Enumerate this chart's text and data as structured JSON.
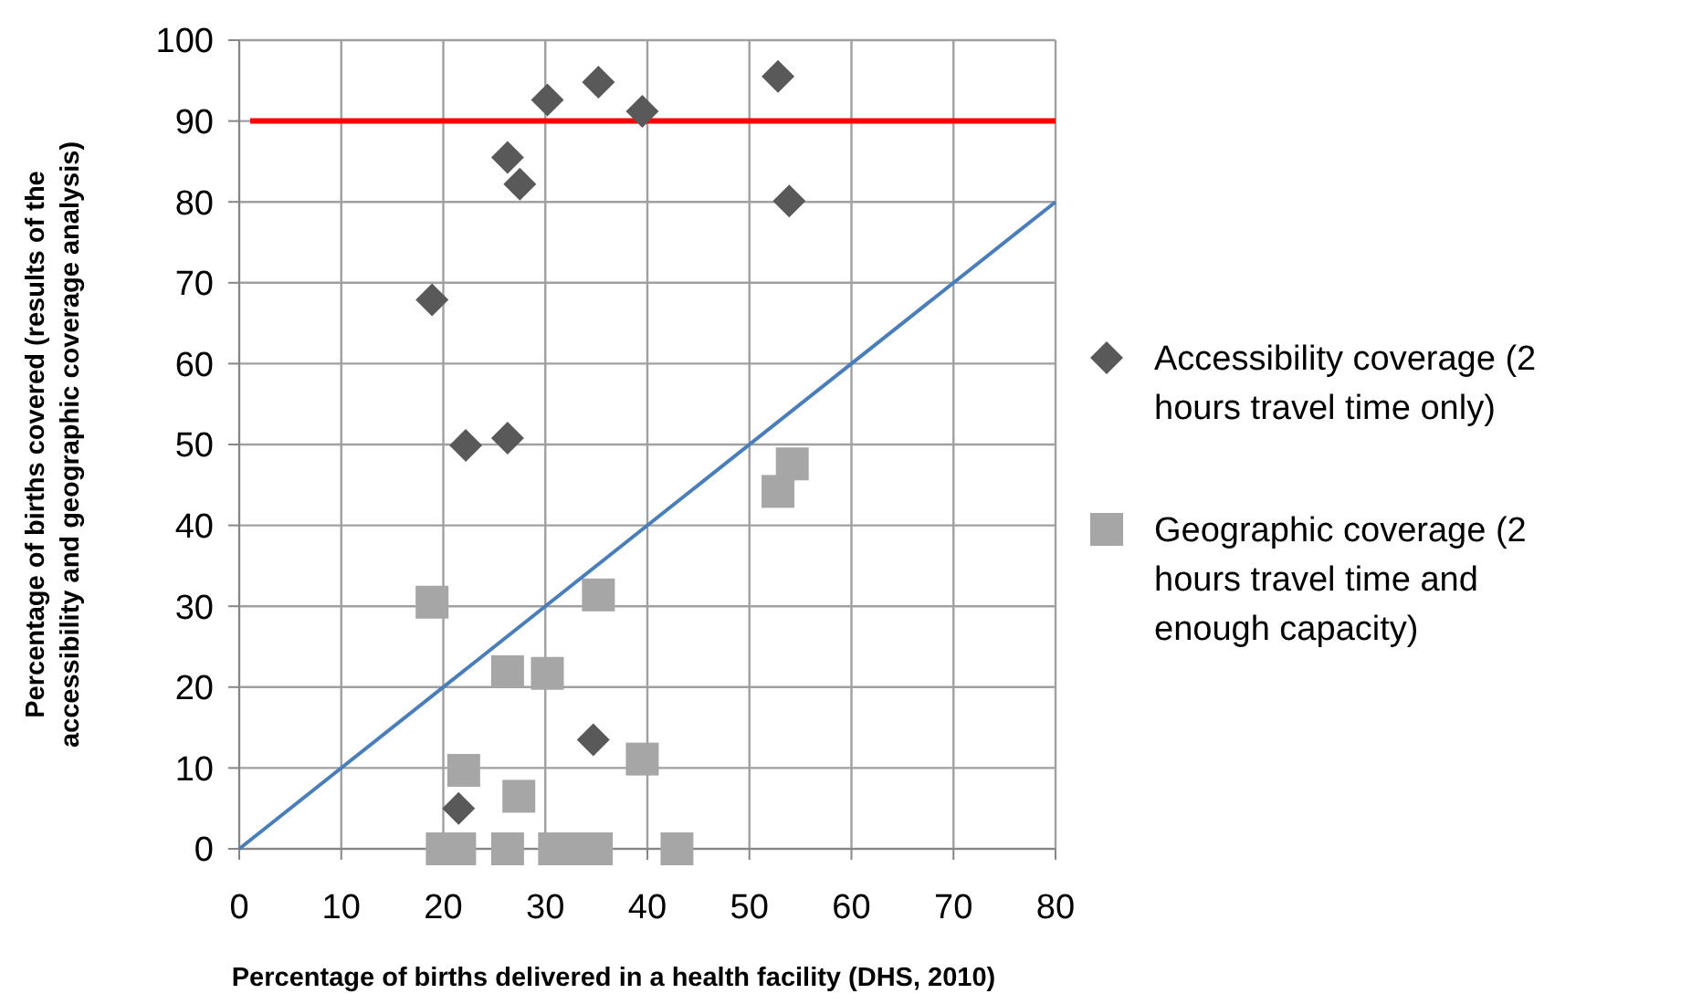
{
  "chart_data": {
    "type": "scatter",
    "xlabel": "Percentage of births delivered in a health facility (DHS, 2010)",
    "ylabel": "Percentage of births covered (results of the accessibility and geographic coverage analysis)",
    "xlim": [
      0,
      80
    ],
    "xticks": [
      0,
      10,
      20,
      30,
      40,
      50,
      60,
      70,
      80
    ],
    "ylim": [
      0,
      100
    ],
    "yticks": [
      0,
      10,
      20,
      30,
      40,
      50,
      60,
      70,
      80,
      90,
      100
    ],
    "grid": true,
    "legend": "right",
    "series": [
      {
        "name": "Accessibility coverage (2 hours travel time only)",
        "color": "#595959",
        "marker": "diamond",
        "x": [
          18.9,
          22.2,
          26.3,
          26.3,
          27.5,
          30.2,
          35.2,
          39.5,
          52.8,
          53.9,
          34.7,
          21.5
        ],
        "values": [
          67.9,
          49.9,
          50.8,
          85.5,
          82.2,
          92.6,
          94.8,
          91.2,
          95.5,
          80.1,
          13.5,
          5.0
        ]
      },
      {
        "name": "Geographic coverage (2 hours travel time and enough capacity)",
        "color": "#a6a6a6",
        "marker": "square",
        "x": [
          18.9,
          54.2,
          52.8,
          35.2,
          26.3,
          30.2,
          39.5,
          22.0,
          27.4,
          19.9,
          21.6,
          26.3,
          30.9,
          33.8,
          35.0,
          42.9
        ],
        "values": [
          30.5,
          47.6,
          44.2,
          31.4,
          21.9,
          21.7,
          11.1,
          9.7,
          6.5,
          0,
          0,
          0,
          0,
          0,
          0,
          0
        ]
      },
      {
        "type": "line",
        "color": "#4a7ebb",
        "marker": "none",
        "x": [
          0,
          80
        ],
        "values": [
          0,
          80
        ]
      }
    ],
    "ref_lines": [
      {
        "axis": "y",
        "value": 90,
        "color": "#ff0000"
      }
    ]
  }
}
